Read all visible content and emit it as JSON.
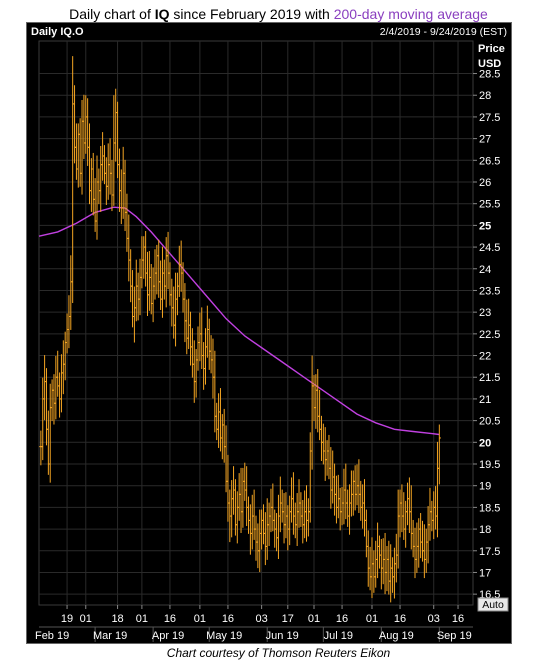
{
  "header": {
    "title_prefix": "Daily chart of ",
    "title_symbol": "IQ",
    "title_middle": " since February 2019 with ",
    "title_ma": "200-day moving average"
  },
  "panel": {
    "symbol_label": "Daily IQ.O",
    "date_range": "2/4/2019 - 9/24/2019 (EST)",
    "price_label": "Price",
    "currency_label": "USD",
    "auto_label": "Auto"
  },
  "caption": "Chart courtesy of Thomson Reuters Eikon",
  "colors": {
    "background": "#000000",
    "price_bars": "#f5a623",
    "moving_average": "#c040e0",
    "grid": "#2a2a2a",
    "axis_text": "#ffffff"
  },
  "chart_data": {
    "type": "line",
    "y_axis": {
      "ylim": [
        16.25,
        29.25
      ],
      "ticks": [
        "16.5",
        "17",
        "17.5",
        "18",
        "18.5",
        "19",
        "19.5",
        "20",
        "20.5",
        "21",
        "21.5",
        "22",
        "22.5",
        "23",
        "23.5",
        "24",
        "24.5",
        "25",
        "25.5",
        "26",
        "26.5",
        "27",
        "27.5",
        "28",
        "28.5"
      ],
      "bold_ticks": [
        "20",
        "25"
      ]
    },
    "x_axis": {
      "day_ticks": [
        {
          "label": "19",
          "day": 15
        },
        {
          "label": "01",
          "day": 25
        },
        {
          "label": "18",
          "day": 42
        },
        {
          "label": "01",
          "day": 55
        },
        {
          "label": "16",
          "day": 70
        },
        {
          "label": "01",
          "day": 86
        },
        {
          "label": "16",
          "day": 101
        },
        {
          "label": "03",
          "day": 119
        },
        {
          "label": "17",
          "day": 133
        },
        {
          "label": "01",
          "day": 147
        },
        {
          "label": "16",
          "day": 162
        },
        {
          "label": "01",
          "day": 178
        },
        {
          "label": "16",
          "day": 193
        },
        {
          "label": "03",
          "day": 211
        },
        {
          "label": "16",
          "day": 224
        }
      ],
      "month_labels": [
        {
          "label": "Feb 19",
          "day": 7
        },
        {
          "label": "Mar 19",
          "day": 38
        },
        {
          "label": "Apr 19",
          "day": 69
        },
        {
          "label": "May 19",
          "day": 99
        },
        {
          "label": "Jun 19",
          "day": 130
        },
        {
          "label": "Jul 19",
          "day": 160
        },
        {
          "label": "Aug 19",
          "day": 191
        },
        {
          "label": "Sep 19",
          "day": 222
        }
      ],
      "xlim": [
        0,
        232
      ]
    },
    "series": [
      {
        "name": "200-day moving average",
        "type": "line",
        "points": [
          [
            0,
            24.75
          ],
          [
            10,
            24.85
          ],
          [
            20,
            25.05
          ],
          [
            30,
            25.3
          ],
          [
            40,
            25.42
          ],
          [
            46,
            25.4
          ],
          [
            52,
            25.2
          ],
          [
            60,
            24.85
          ],
          [
            70,
            24.35
          ],
          [
            80,
            23.85
          ],
          [
            90,
            23.35
          ],
          [
            100,
            22.85
          ],
          [
            110,
            22.45
          ],
          [
            120,
            22.15
          ],
          [
            130,
            21.85
          ],
          [
            140,
            21.55
          ],
          [
            150,
            21.25
          ],
          [
            160,
            20.95
          ],
          [
            170,
            20.65
          ],
          [
            180,
            20.45
          ],
          [
            190,
            20.3
          ],
          [
            200,
            20.25
          ],
          [
            210,
            20.2
          ],
          [
            214,
            20.18
          ]
        ]
      },
      {
        "name": "Daily IQ.O",
        "type": "ohlc",
        "closes": [
          [
            1,
            19.9
          ],
          [
            2,
            21.0
          ],
          [
            3,
            21.4
          ],
          [
            4,
            20.3
          ],
          [
            5,
            19.5
          ],
          [
            6,
            20.8
          ],
          [
            7,
            21.2
          ],
          [
            8,
            20.9
          ],
          [
            9,
            21.5
          ],
          [
            10,
            21.3
          ],
          [
            11,
            21.0
          ],
          [
            12,
            21.6
          ],
          [
            13,
            21.8
          ],
          [
            14,
            22.3
          ],
          [
            15,
            22.6
          ],
          [
            16,
            22.9
          ],
          [
            17,
            23.7
          ],
          [
            18,
            27.8
          ],
          [
            19,
            26.8
          ],
          [
            20,
            26.3
          ],
          [
            21,
            27.1
          ],
          [
            22,
            26.2
          ],
          [
            23,
            27.4
          ],
          [
            24,
            26.9
          ],
          [
            25,
            27.5
          ],
          [
            26,
            26.8
          ],
          [
            27,
            25.8
          ],
          [
            28,
            26.3
          ],
          [
            29,
            25.6
          ],
          [
            30,
            25.1
          ],
          [
            31,
            26.0
          ],
          [
            32,
            25.8
          ],
          [
            33,
            26.4
          ],
          [
            34,
            26.6
          ],
          [
            35,
            26.2
          ],
          [
            36,
            25.9
          ],
          [
            37,
            26.4
          ],
          [
            38,
            26.2
          ],
          [
            39,
            25.7
          ],
          [
            40,
            26.9
          ],
          [
            41,
            27.6
          ],
          [
            42,
            26.4
          ],
          [
            43,
            25.8
          ],
          [
            44,
            25.4
          ],
          [
            45,
            26.2
          ],
          [
            46,
            25.3
          ],
          [
            47,
            24.7
          ],
          [
            48,
            24.2
          ],
          [
            49,
            23.6
          ],
          [
            50,
            22.9
          ],
          [
            51,
            23.1
          ],
          [
            52,
            23.6
          ],
          [
            53,
            23.3
          ],
          [
            54,
            23.8
          ],
          [
            55,
            24.2
          ],
          [
            56,
            24.5
          ],
          [
            57,
            23.9
          ],
          [
            58,
            23.4
          ],
          [
            59,
            23.8
          ],
          [
            60,
            23.2
          ],
          [
            61,
            23.6
          ],
          [
            62,
            23.9
          ],
          [
            63,
            24.3
          ],
          [
            64,
            23.7
          ],
          [
            65,
            23.3
          ],
          [
            66,
            23.9
          ],
          [
            67,
            23.6
          ],
          [
            68,
            24.3
          ],
          [
            69,
            23.9
          ],
          [
            70,
            23.4
          ],
          [
            71,
            23.1
          ],
          [
            72,
            22.7
          ],
          [
            73,
            23.3
          ],
          [
            74,
            23.6
          ],
          [
            75,
            24.1
          ],
          [
            76,
            23.9
          ],
          [
            77,
            23.3
          ],
          [
            78,
            22.8
          ],
          [
            79,
            22.4
          ],
          [
            80,
            22.7
          ],
          [
            81,
            22.2
          ],
          [
            82,
            21.8
          ],
          [
            83,
            21.4
          ],
          [
            84,
            21.9
          ],
          [
            85,
            22.3
          ],
          [
            86,
            22.5
          ],
          [
            87,
            22.0
          ],
          [
            88,
            21.7
          ],
          [
            89,
            22.2
          ],
          [
            90,
            22.6
          ],
          [
            91,
            22.1
          ],
          [
            92,
            21.9
          ],
          [
            93,
            21.5
          ],
          [
            94,
            20.6
          ],
          [
            95,
            20.3
          ],
          [
            96,
            20.7
          ],
          [
            97,
            20.1
          ],
          [
            98,
            20.4
          ],
          [
            99,
            19.9
          ],
          [
            100,
            19.1
          ],
          [
            101,
            18.6
          ],
          [
            102,
            18.3
          ],
          [
            103,
            18.7
          ],
          [
            104,
            18.9
          ],
          [
            105,
            18.1
          ],
          [
            106,
            18.5
          ],
          [
            107,
            18.8
          ],
          [
            108,
            18.4
          ],
          [
            109,
            19.1
          ],
          [
            110,
            18.9
          ],
          [
            111,
            18.5
          ],
          [
            112,
            18.2
          ],
          [
            113,
            17.9
          ],
          [
            114,
            18.3
          ],
          [
            115,
            18.0
          ],
          [
            116,
            17.7
          ],
          [
            117,
            17.5
          ],
          [
            118,
            17.9
          ],
          [
            119,
            18.2
          ],
          [
            120,
            17.9
          ],
          [
            121,
            17.6
          ],
          [
            122,
            18.1
          ],
          [
            123,
            18.3
          ],
          [
            124,
            18.5
          ],
          [
            125,
            18.2
          ],
          [
            126,
            18.0
          ],
          [
            127,
            17.8
          ],
          [
            128,
            18.3
          ],
          [
            129,
            18.6
          ],
          [
            130,
            18.4
          ],
          [
            131,
            18.1
          ],
          [
            132,
            18.3
          ],
          [
            133,
            18.0
          ],
          [
            134,
            18.4
          ],
          [
            135,
            18.7
          ],
          [
            136,
            18.3
          ],
          [
            137,
            18.1
          ],
          [
            138,
            18.4
          ],
          [
            139,
            18.6
          ],
          [
            140,
            18.3
          ],
          [
            141,
            18.1
          ],
          [
            142,
            18.4
          ],
          [
            143,
            18.2
          ],
          [
            144,
            18.4
          ],
          [
            145,
            19.8
          ],
          [
            146,
            21.3
          ],
          [
            147,
            20.8
          ],
          [
            148,
            21.2
          ],
          [
            149,
            20.6
          ],
          [
            150,
            20.3
          ],
          [
            151,
            20.0
          ],
          [
            152,
            19.8
          ],
          [
            153,
            19.6
          ],
          [
            154,
            19.8
          ],
          [
            155,
            19.4
          ],
          [
            156,
            18.9
          ],
          [
            157,
            19.2
          ],
          [
            158,
            18.8
          ],
          [
            159,
            18.5
          ],
          [
            160,
            18.7
          ],
          [
            161,
            18.4
          ],
          [
            162,
            18.6
          ],
          [
            163,
            18.9
          ],
          [
            164,
            18.6
          ],
          [
            165,
            18.3
          ],
          [
            166,
            18.6
          ],
          [
            167,
            18.8
          ],
          [
            168,
            19.1
          ],
          [
            169,
            18.8
          ],
          [
            170,
            19.0
          ],
          [
            171,
            18.8
          ],
          [
            172,
            18.5
          ],
          [
            173,
            18.6
          ],
          [
            174,
            18.2
          ],
          [
            175,
            17.6
          ],
          [
            176,
            17.1
          ],
          [
            177,
            16.9
          ],
          [
            178,
            17.2
          ],
          [
            179,
            16.9
          ],
          [
            180,
            17.3
          ],
          [
            181,
            17.6
          ],
          [
            182,
            17.4
          ],
          [
            183,
            17.1
          ],
          [
            184,
            17.3
          ],
          [
            185,
            17.0
          ],
          [
            186,
            17.3
          ],
          [
            187,
            16.8
          ],
          [
            188,
            17.1
          ],
          [
            189,
            16.9
          ],
          [
            190,
            17.2
          ],
          [
            191,
            17.4
          ],
          [
            192,
            18.3
          ],
          [
            193,
            18.6
          ],
          [
            194,
            18.3
          ],
          [
            195,
            18.0
          ],
          [
            196,
            18.4
          ],
          [
            197,
            18.7
          ],
          [
            198,
            18.4
          ],
          [
            199,
            17.9
          ],
          [
            200,
            17.6
          ],
          [
            201,
            17.3
          ],
          [
            202,
            17.6
          ],
          [
            203,
            18.0
          ],
          [
            204,
            17.7
          ],
          [
            205,
            17.5
          ],
          [
            206,
            17.3
          ],
          [
            207,
            17.7
          ],
          [
            208,
            18.1
          ],
          [
            209,
            18.4
          ],
          [
            210,
            18.2
          ],
          [
            211,
            18.5
          ],
          [
            212,
            18.3
          ],
          [
            213,
            19.4
          ],
          [
            214,
            20.1
          ]
        ],
        "notable_highs": [
          [
            18,
            28.9
          ],
          [
            40,
            28.0
          ],
          [
            25,
            28.0
          ],
          [
            146,
            22.0
          ],
          [
            214,
            20.3
          ]
        ],
        "notable_lows": [
          [
            5,
            19.4
          ],
          [
            17,
            23.5
          ],
          [
            51,
            22.3
          ],
          [
            102,
            17.7
          ],
          [
            117,
            17.1
          ],
          [
            185,
            16.5
          ],
          [
            190,
            16.4
          ]
        ]
      }
    ]
  }
}
